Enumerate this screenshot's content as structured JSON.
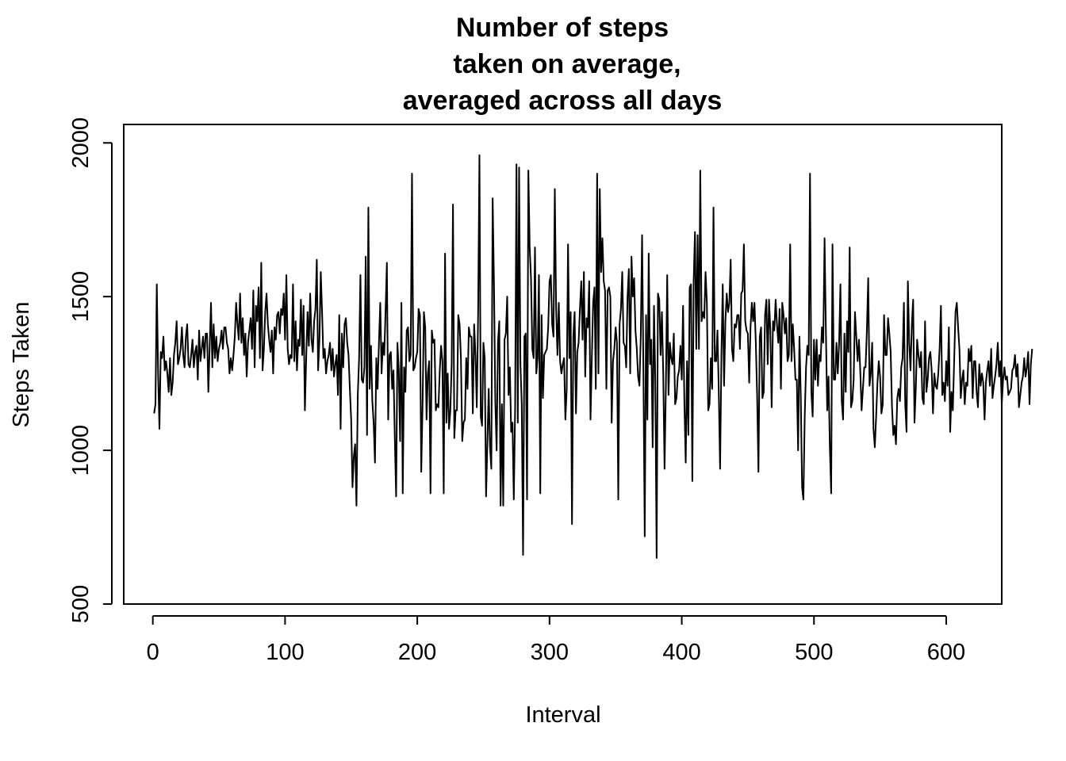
{
  "chart_data": {
    "type": "line",
    "title_lines": [
      "Number of steps",
      "taken on average,",
      "averaged across all days"
    ],
    "xlabel": "Interval",
    "ylabel": "Steps Taken",
    "xlim": [
      -22,
      642
    ],
    "ylim": [
      500,
      2060
    ],
    "x_ticks": [
      0,
      100,
      200,
      300,
      400,
      500,
      600
    ],
    "y_ticks": [
      500,
      1000,
      1500,
      2000
    ],
    "grid": false,
    "legend": "none",
    "line_color": "#000000",
    "series": [
      {
        "x_start": 1,
        "x_step": 1,
        "values": [
          1120,
          1150,
          1540,
          1250,
          1070,
          1320,
          1300,
          1370,
          1260,
          1290,
          1250,
          1190,
          1300,
          1180,
          1220,
          1310,
          1350,
          1420,
          1280,
          1300,
          1330,
          1400,
          1310,
          1270,
          1370,
          1410,
          1280,
          1270,
          1310,
          1360,
          1270,
          1320,
          1340,
          1230,
          1390,
          1290,
          1330,
          1370,
          1300,
          1380,
          1380,
          1190,
          1340,
          1480,
          1270,
          1410,
          1300,
          1370,
          1290,
          1330,
          1350,
          1390,
          1330,
          1400,
          1400,
          1350,
          1330,
          1250,
          1300,
          1260,
          1310,
          1370,
          1480,
          1410,
          1360,
          1510,
          1350,
          1430,
          1310,
          1380,
          1240,
          1350,
          1390,
          1430,
          1330,
          1520,
          1270,
          1470,
          1420,
          1530,
          1300,
          1610,
          1260,
          1330,
          1450,
          1510,
          1410,
          1360,
          1320,
          1390,
          1250,
          1400,
          1360,
          1440,
          1450,
          1380,
          1460,
          1440,
          1510,
          1360,
          1570,
          1330,
          1280,
          1310,
          1300,
          1540,
          1290,
          1420,
          1260,
          1360,
          1340,
          1490,
          1310,
          1470,
          1130,
          1300,
          1450,
          1340,
          1510,
          1360,
          1320,
          1420,
          1460,
          1620,
          1260,
          1360,
          1580,
          1450,
          1300,
          1330,
          1250,
          1290,
          1310,
          1350,
          1260,
          1330,
          1240,
          1280,
          1310,
          1180,
          1440,
          1070,
          1380,
          1270,
          1410,
          1430,
          1350,
          1310,
          1200,
          1100,
          880,
          980,
          1020,
          820,
          1180,
          1300,
          1570,
          1230,
          1220,
          1270,
          1630,
          1050,
          1790,
          1200,
          1340,
          1160,
          1090,
          960,
          1300,
          1200,
          1350,
          1480,
          1250,
          1350,
          1310,
          1450,
          1610,
          1100,
          1310,
          1320,
          1200,
          1260,
          1040,
          850,
          1350,
          1260,
          1030,
          1480,
          860,
          1270,
          1190,
          1390,
          1400,
          1290,
          1310,
          1900,
          1260,
          1270,
          1300,
          1320,
          1460,
          1440,
          930,
          1150,
          1450,
          1400,
          1100,
          1250,
          1290,
          860,
          1390,
          1350,
          1360,
          1130,
          1150,
          1140,
          1260,
          1340,
          1290,
          860,
          1640,
          1090,
          1250,
          1070,
          1130,
          1280,
          1800,
          1040,
          1130,
          1130,
          1440,
          1410,
          1300,
          1030,
          1090,
          1100,
          1300,
          1200,
          1400,
          1370,
          1370,
          1120,
          1410,
          1310,
          1140,
          1440,
          1960,
          1110,
          1080,
          1350,
          1300,
          850,
          1020,
          1200,
          1010,
          940,
          1820,
          1540,
          1160,
          1000,
          1350,
          1420,
          820,
          1150,
          820,
          1360,
          1380,
          1500,
          1180,
          1270,
          1060,
          1090,
          840,
          1140,
          1930,
          1090,
          1920,
          1280,
          1150,
          660,
          1370,
          1380,
          840,
          1910,
          1660,
          1560,
          1330,
          1300,
          1660,
          1250,
          1300,
          1570,
          860,
          1440,
          1170,
          1310,
          1320,
          1330,
          1400,
          1550,
          1570,
          1410,
          1370,
          1850,
          1460,
          1310,
          1480,
          1290,
          1250,
          1280,
          1300,
          1100,
          1200,
          1670,
          1300,
          1450,
          760,
          1370,
          1450,
          1120,
          1320,
          1350,
          1460,
          1550,
          1360,
          1580,
          1240,
          1430,
          1400,
          1550,
          1100,
          1300,
          1480,
          1530,
          1200,
          1900,
          1250,
          1850,
          1580,
          1690,
          1550,
          1520,
          1200,
          1520,
          1530,
          1500,
          1090,
          1290,
          1330,
          1400,
          1350,
          840,
          1410,
          1460,
          1580,
          1350,
          1340,
          1270,
          1500,
          1590,
          1250,
          1630,
          1500,
          1560,
          1390,
          1330,
          1240,
          1210,
          1370,
          1700,
          1260,
          720,
          1440,
          1100,
          1640,
          1280,
          1360,
          1010,
          1470,
          1230,
          650,
          1510,
          1490,
          1310,
          1450,
          1250,
          940,
          1210,
          1570,
          1180,
          1350,
          1300,
          1280,
          1380,
          1150,
          1170,
          1240,
          1260,
          1340,
          1230,
          1470,
          1150,
          960,
          1290,
          1050,
          1530,
          1540,
          900,
          1550,
          1710,
          1330,
          1700,
          1330,
          1910,
          1420,
          1450,
          1430,
          1580,
          1480,
          1130,
          1150,
          1300,
          1200,
          1790,
          1290,
          1290,
          1390,
          1190,
          940,
          1310,
          1540,
          1210,
          1420,
          1510,
          1450,
          1480,
          1620,
          1330,
          1290,
          1410,
          1400,
          1440,
          1440,
          1330,
          1510,
          1520,
          1670,
          1420,
          1390,
          1380,
          1220,
          1400,
          1480,
          1420,
          1480,
          1350,
          1180,
          930,
          1370,
          1400,
          1170,
          1190,
          1440,
          1490,
          1280,
          1490,
          1390,
          1140,
          1420,
          1390,
          1490,
          1410,
          1350,
          1460,
          1200,
          1480,
          1440,
          1380,
          1430,
          1290,
          1310,
          1670,
          1290,
          1410,
          1330,
          1230,
          1230,
          1000,
          1370,
          1180,
          880,
          840,
          1110,
          1270,
          1340,
          1310,
          1900,
          1190,
          1110,
          1360,
          1230,
          1360,
          1210,
          1310,
          1290,
          1400,
          1350,
          1690,
          1390,
          1130,
          1240,
          1010,
          860,
          1670,
          1230,
          1230,
          1350,
          1250,
          1350,
          1540,
          1160,
          1100,
          1380,
          1190,
          1420,
          1320,
          1660,
          1140,
          1160,
          1230,
          1450,
          1370,
          1290,
          1360,
          1260,
          1130,
          1200,
          1270,
          1270,
          1390,
          1560,
          1210,
          1250,
          1350,
          1070,
          1010,
          1110,
          1220,
          1290,
          1240,
          1120,
          1150,
          1440,
          1310,
          1310,
          1430,
          1380,
          1320,
          1140,
          1050,
          1080,
          1020,
          1170,
          1200,
          1160,
          1270,
          1300,
          1480,
          1150,
          1060,
          1550,
          1350,
          1260,
          1410,
          1490,
          1090,
          1200,
          1360,
          1310,
          1270,
          1320,
          1170,
          1150,
          1420,
          1190,
          1230,
          1300,
          1320,
          1260,
          1120,
          1250,
          1210,
          1200,
          1250,
          1330,
          1470,
          1180,
          1220,
          1160,
          1290,
          1210,
          1400,
          1060,
          1190,
          1130,
          1290,
          1450,
          1480,
          1400,
          1330,
          1170,
          1230,
          1260,
          1150,
          1220,
          1210,
          1330,
          1290,
          1340,
          1170,
          1290,
          1290,
          1190,
          1140,
          1280,
          1210,
          1250,
          1220,
          1100,
          1220,
          1260,
          1290,
          1210,
          1330,
          1170,
          1210,
          1240,
          1280,
          1350,
          1240,
          1290,
          1150,
          1230,
          1270,
          1230,
          1240,
          1180,
          1190,
          1200,
          1260,
          1270,
          1310,
          1240,
          1280,
          1140,
          1180,
          1220,
          1240,
          1300,
          1240,
          1270,
          1320,
          1150,
          1280,
          1330
        ]
      }
    ]
  }
}
